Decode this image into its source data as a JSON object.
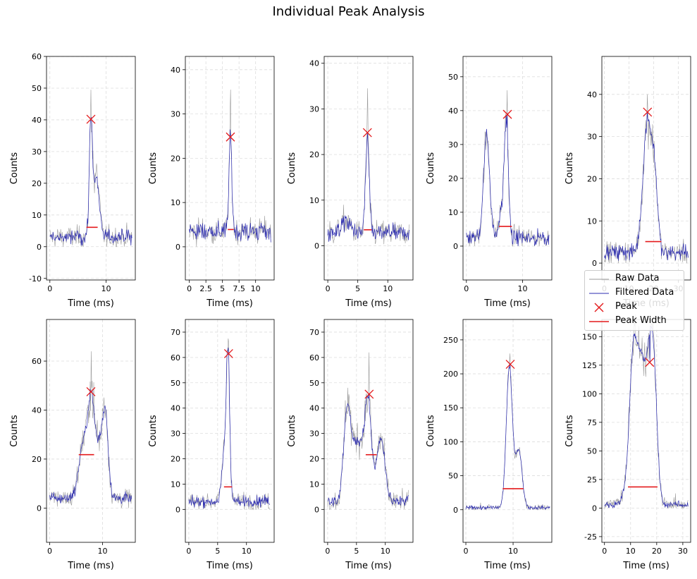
{
  "title": "Individual Peak Analysis",
  "colors": {
    "raw": "#9a9a9a",
    "filtered": "#2b2bb0",
    "peak": "#e41a1c",
    "width": "#e41a1c",
    "grid": "#dddddd"
  },
  "legend": {
    "position": "right, between rows",
    "entries": [
      {
        "label": "Raw Data",
        "symbol": "line-gray"
      },
      {
        "label": "Filtered Data",
        "symbol": "line-blue"
      },
      {
        "label": "Peak",
        "symbol": "x-marker-red"
      },
      {
        "label": "Peak Width",
        "symbol": "line-red"
      }
    ]
  },
  "chart_data": [
    {
      "type": "line",
      "xlabel": "Time (ms)",
      "ylabel": "Counts",
      "xlim": [
        -0.6,
        15.2
      ],
      "ylim": [
        -10.5,
        60
      ],
      "xticks": [
        0,
        10
      ],
      "yticks": [
        -10,
        0,
        10,
        20,
        30,
        40,
        50,
        60
      ],
      "grid": true,
      "baseline": 3,
      "noise": 2,
      "raw_extra": 4.5,
      "duration_ms": 14.6,
      "components": [
        [
          7.3,
          37,
          0.28
        ],
        [
          8.3,
          19,
          0.5
        ]
      ],
      "peak": {
        "x": 7.3,
        "y": 40.2
      },
      "width": {
        "x0": 6.5,
        "x1": 8.5,
        "y": 6.1
      },
      "max_raw": 49.5
    },
    {
      "type": "line",
      "xlabel": "Time (ms)",
      "ylabel": "Counts",
      "xlim": [
        -0.6,
        12.8
      ],
      "ylim": [
        -7.5,
        43
      ],
      "xticks": [
        0,
        2.5,
        5,
        7.5,
        10
      ],
      "yticks": [
        0,
        10,
        20,
        30,
        40
      ],
      "grid": true,
      "baseline": 3.5,
      "noise": 1.8,
      "raw_extra": 3.5,
      "duration_ms": 12.3,
      "components": [
        [
          6.2,
          21,
          0.22
        ]
      ],
      "peak": {
        "x": 6.2,
        "y": 24.8
      },
      "width": {
        "x0": 5.8,
        "x1": 6.7,
        "y": 3.9
      },
      "max_raw": 35.5
    },
    {
      "type": "line",
      "xlabel": "Time (ms)",
      "ylabel": "Counts",
      "xlim": [
        -0.6,
        14.2
      ],
      "ylim": [
        -7.5,
        41.5
      ],
      "xticks": [
        0,
        5,
        10
      ],
      "yticks": [
        0,
        10,
        20,
        30,
        40
      ],
      "grid": true,
      "baseline": 2.8,
      "noise": 1.6,
      "raw_extra": 3.5,
      "duration_ms": 13.6,
      "components": [
        [
          6.6,
          21,
          0.3
        ],
        [
          3,
          2.5,
          0.8
        ]
      ],
      "peak": {
        "x": 6.6,
        "y": 24.8
      },
      "width": {
        "x0": 6.0,
        "x1": 7.3,
        "y": 3.5
      },
      "max_raw": 34.5
    },
    {
      "type": "line",
      "xlabel": "Time (ms)",
      "ylabel": "Counts",
      "xlim": [
        -0.6,
        15.2
      ],
      "ylim": [
        -10,
        56
      ],
      "xticks": [
        0,
        10
      ],
      "yticks": [
        0,
        10,
        20,
        30,
        40,
        50
      ],
      "grid": true,
      "baseline": 2.5,
      "noise": 2.0,
      "raw_extra": 4,
      "duration_ms": 14.7,
      "components": [
        [
          3.6,
          30,
          0.55
        ],
        [
          7.1,
          33,
          0.35
        ],
        [
          6.3,
          8,
          0.5
        ]
      ],
      "peak": {
        "x": 7.3,
        "y": 38.9
      },
      "width": {
        "x0": 5.8,
        "x1": 8.1,
        "y": 5.8
      },
      "max_raw": 46
    },
    {
      "type": "line",
      "xlabel": "Time (ms)",
      "ylabel": "Counts",
      "xlim": [
        -1.0,
        35.0
      ],
      "ylim": [
        -4,
        49
      ],
      "xticks": [
        0,
        10,
        20,
        30
      ],
      "yticks": [
        0,
        10,
        20,
        30,
        40
      ],
      "grid": true,
      "baseline": 2.5,
      "noise": 1.5,
      "raw_extra": 3.5,
      "duration_ms": 34,
      "components": [
        [
          17.5,
          31,
          1.8
        ],
        [
          20.5,
          14,
          1.2
        ]
      ],
      "peak": {
        "x": 17.5,
        "y": 35.8
      },
      "width": {
        "x0": 16.6,
        "x1": 23.1,
        "y": 5.1
      },
      "max_raw": 40
    },
    {
      "type": "line",
      "xlabel": "Time (ms)",
      "ylabel": "Counts",
      "xlim": [
        -0.6,
        16.2
      ],
      "ylim": [
        -14,
        77
      ],
      "xticks": [
        0,
        10
      ],
      "yticks": [
        0,
        20,
        40,
        60
      ],
      "grid": true,
      "baseline": 4,
      "noise": 2.0,
      "raw_extra": 6,
      "duration_ms": 15.5,
      "components": [
        [
          6.5,
          24,
          0.9
        ],
        [
          7.9,
          36,
          0.55
        ],
        [
          10.5,
          36,
          0.55
        ],
        [
          9.2,
          20,
          0.6
        ]
      ],
      "peak": {
        "x": 7.8,
        "y": 47.5
      },
      "width": {
        "x0": 5.5,
        "x1": 8.4,
        "y": 21.8
      },
      "max_raw": 64
    },
    {
      "type": "line",
      "xlabel": "Time (ms)",
      "ylabel": "Counts",
      "xlim": [
        -0.6,
        14.8
      ],
      "ylim": [
        -13,
        75
      ],
      "xticks": [
        0,
        5,
        10
      ],
      "yticks": [
        0,
        10,
        20,
        30,
        40,
        50,
        60,
        70
      ],
      "grid": true,
      "baseline": 3,
      "noise": 2.0,
      "raw_extra": 5,
      "duration_ms": 14,
      "components": [
        [
          6.8,
          58,
          0.3
        ],
        [
          6.1,
          18,
          0.4
        ]
      ],
      "peak": {
        "x": 6.9,
        "y": 61.5
      },
      "width": {
        "x0": 6.1,
        "x1": 7.5,
        "y": 8.9
      },
      "max_raw": 66
    },
    {
      "type": "line",
      "xlabel": "Time (ms)",
      "ylabel": "Counts",
      "xlim": [
        -0.6,
        14.8
      ],
      "ylim": [
        -13,
        75
      ],
      "xticks": [
        0,
        5,
        10
      ],
      "yticks": [
        0,
        10,
        20,
        30,
        40,
        50,
        60,
        70
      ],
      "grid": true,
      "baseline": 3,
      "noise": 2.0,
      "raw_extra": 6,
      "duration_ms": 14,
      "components": [
        [
          3.4,
          36,
          0.6
        ],
        [
          7.0,
          38,
          0.6
        ],
        [
          5.2,
          24,
          0.9
        ],
        [
          9.2,
          25,
          0.7
        ]
      ],
      "peak": {
        "x": 7.2,
        "y": 45.5
      },
      "width": {
        "x0": 6.6,
        "x1": 8.5,
        "y": 21.6
      },
      "max_raw": 62
    },
    {
      "type": "line",
      "xlabel": "Time (ms)",
      "ylabel": "Counts",
      "xlim": [
        -0.6,
        18.2
      ],
      "ylim": [
        -48,
        280
      ],
      "xticks": [
        0,
        10
      ],
      "yticks": [
        0,
        50,
        100,
        150,
        200,
        250
      ],
      "grid": true,
      "baseline": 3,
      "noise": 2.5,
      "raw_extra": 8,
      "duration_ms": 17.8,
      "components": [
        [
          9.2,
          205,
          0.65
        ],
        [
          11.2,
          85,
          0.7
        ]
      ],
      "peak": {
        "x": 9.4,
        "y": 214
      },
      "width": {
        "x0": 7.8,
        "x1": 12.2,
        "y": 31
      },
      "max_raw": 230
    },
    {
      "type": "line",
      "xlabel": "Time (ms)",
      "ylabel": "Counts",
      "xlim": [
        -1.0,
        33.0
      ],
      "ylim": [
        -30,
        165
      ],
      "xticks": [
        0,
        10,
        20,
        30
      ],
      "yticks": [
        -25,
        0,
        25,
        50,
        75,
        100,
        125,
        150
      ],
      "grid": true,
      "baseline": 3,
      "noise": 2.5,
      "raw_extra": 12,
      "duration_ms": 32,
      "components": [
        [
          11,
          100,
          1.4
        ],
        [
          14,
          80,
          1.4
        ],
        [
          17.3,
          115,
          1.5
        ],
        [
          19.2,
          70,
          1.2
        ],
        [
          12.5,
          40,
          3
        ]
      ],
      "peak": {
        "x": 17.3,
        "y": 127.5
      },
      "width": {
        "x0": 9.0,
        "x1": 20.3,
        "y": 18.5
      },
      "max_raw": 141
    }
  ]
}
